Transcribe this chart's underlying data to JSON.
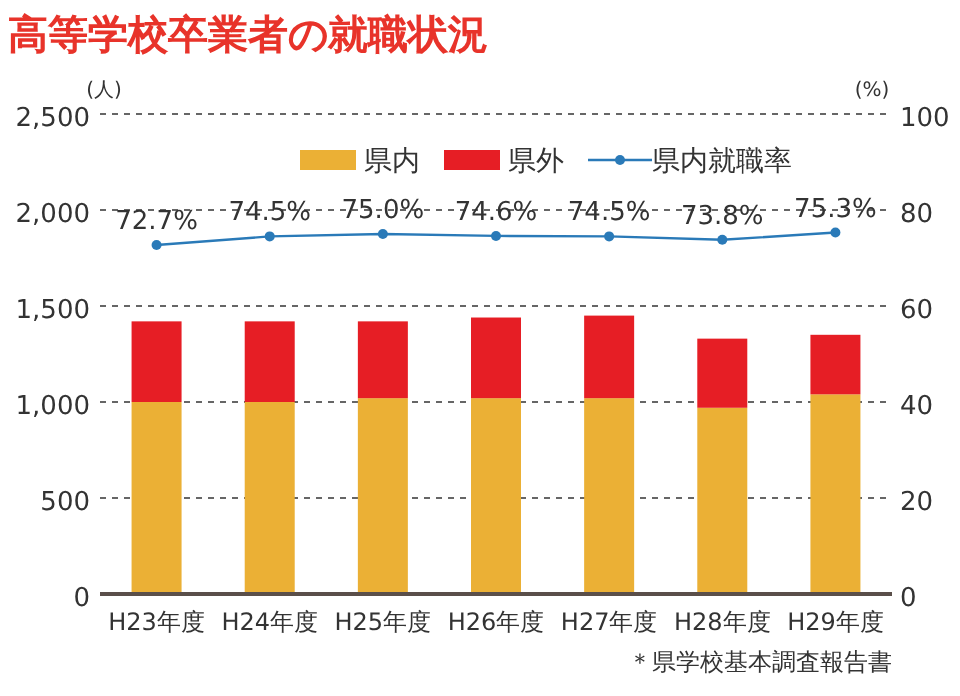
{
  "chart_data": {
    "type": "bar",
    "title": "高等学校卒業者の就職状況",
    "ylabel": "(人)",
    "y2label": "(%)",
    "categories": [
      "H23年度",
      "H24年度",
      "H25年度",
      "H26年度",
      "H27年度",
      "H28年度",
      "H29年度"
    ],
    "stacked": true,
    "series": [
      {
        "name": "県内",
        "color": "#ebb035",
        "values": [
          1000,
          1000,
          1020,
          1020,
          1020,
          970,
          1040
        ]
      },
      {
        "name": "県外",
        "color": "#e61e25",
        "values": [
          420,
          420,
          400,
          420,
          430,
          360,
          310
        ]
      },
      {
        "name": "県内就職率",
        "type": "line",
        "axis": "y2",
        "color": "#2a7ab8",
        "marker": "circle",
        "value_labels": [
          "72.7%",
          "74.5%",
          "75.0%",
          "74.6%",
          "74.5%",
          "73.8%",
          "75.3%"
        ],
        "values": [
          72.7,
          74.5,
          75.0,
          74.6,
          74.5,
          73.8,
          75.3
        ]
      }
    ],
    "ylim": [
      0,
      2500
    ],
    "yticks": [
      0,
      {
        "value": 500,
        "label": "500"
      },
      {
        "value": 1000,
        "label": "1,000"
      },
      {
        "value": 1500,
        "label": "1,500"
      },
      {
        "value": 2000,
        "label": "2,000"
      },
      {
        "value": 2500,
        "label": "2,500"
      }
    ],
    "y2lim": [
      0,
      100
    ],
    "y2ticks": [
      0,
      20,
      40,
      60,
      80,
      100
    ],
    "grid": "y",
    "legend": "top right",
    "annotations": [
      "＊県学校基本調査報告書"
    ]
  }
}
